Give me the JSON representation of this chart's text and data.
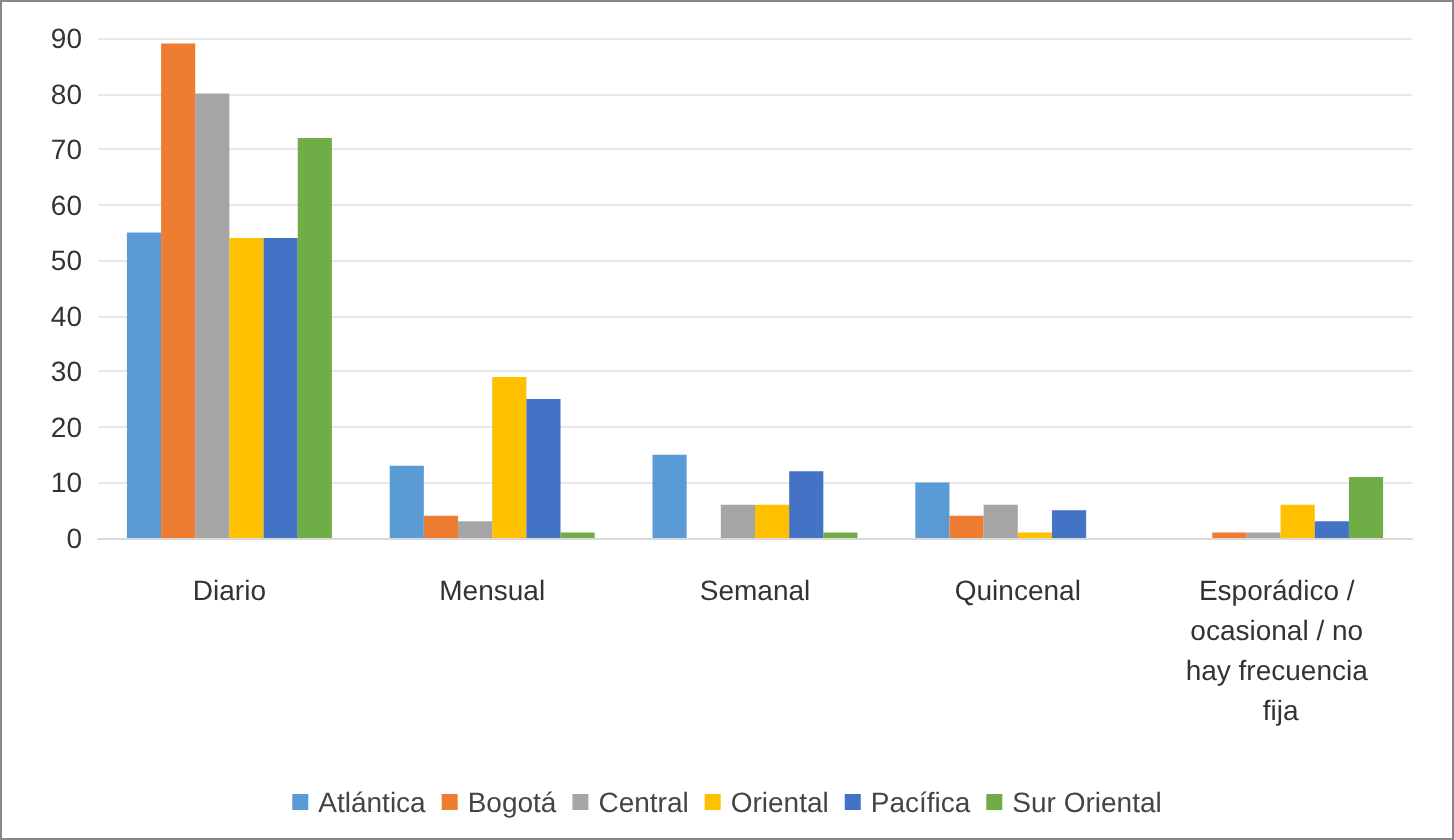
{
  "chart_data": {
    "type": "bar",
    "categories": [
      "Diario",
      "Mensual",
      "Semanal",
      "Quincenal",
      "Esporádico / ocasional / no hay frecuencia fija"
    ],
    "series": [
      {
        "name": "Atlántica",
        "color": "#5b9bd5",
        "values": [
          55,
          13,
          15,
          10,
          0
        ]
      },
      {
        "name": "Bogotá",
        "color": "#ed7d31",
        "values": [
          89,
          4,
          0,
          4,
          1
        ]
      },
      {
        "name": "Central",
        "color": "#a5a5a5",
        "values": [
          80,
          3,
          6,
          6,
          1
        ]
      },
      {
        "name": "Oriental",
        "color": "#ffc000",
        "values": [
          54,
          29,
          6,
          1,
          6
        ]
      },
      {
        "name": "Pacífica",
        "color": "#4472c4",
        "values": [
          54,
          25,
          12,
          5,
          3
        ]
      },
      {
        "name": "Sur Oriental",
        "color": "#70ad47",
        "values": [
          72,
          1,
          1,
          0,
          11
        ]
      }
    ],
    "ylim": [
      0,
      90
    ],
    "yticks": [
      0,
      10,
      20,
      30,
      40,
      50,
      60,
      70,
      80,
      90
    ],
    "grid": "y",
    "legend": "bottom"
  }
}
